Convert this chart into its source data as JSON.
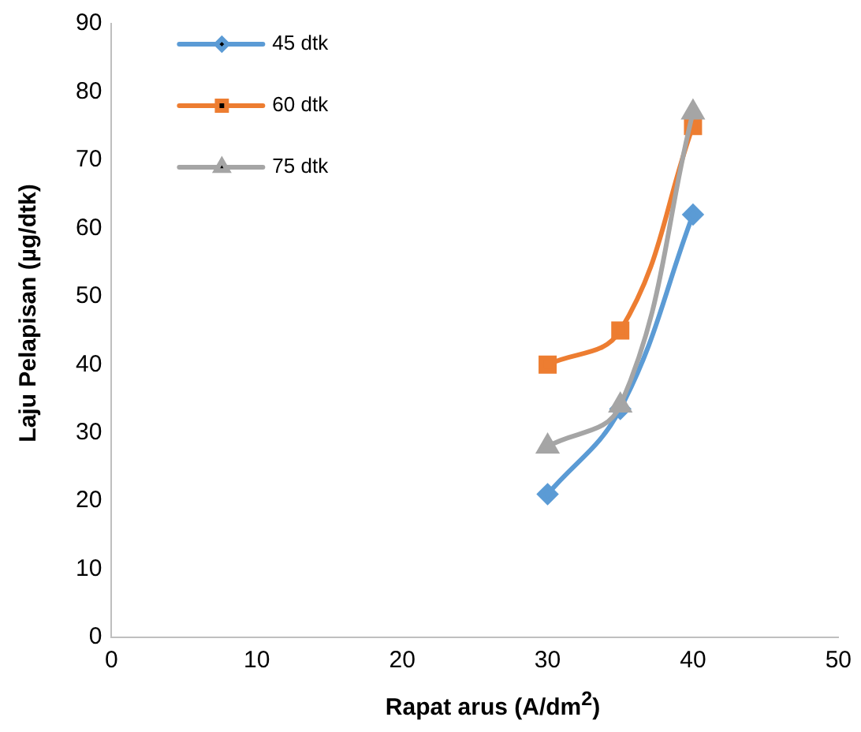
{
  "chart_data": {
    "type": "line",
    "xlabel": "Rapat arus (A/dm$^{2}$)",
    "ylabel": "Laju Pelapisan (µg/dtk)",
    "x": [
      30,
      35,
      40
    ],
    "series": [
      {
        "name": "45 dtk",
        "color": "#5b9bd5",
        "marker": "diamond",
        "values": [
          21,
          33.5,
          62
        ]
      },
      {
        "name": "60 dtk",
        "color": "#ed7d31",
        "marker": "square",
        "values": [
          40,
          45,
          75
        ]
      },
      {
        "name": "75 dtk",
        "color": "#a5a5a5",
        "marker": "triangle",
        "values": [
          28,
          34,
          77
        ]
      }
    ],
    "xlim": [
      0,
      50
    ],
    "xticks": [
      0,
      10,
      20,
      30,
      40,
      50
    ],
    "ylim": [
      0,
      90
    ],
    "yticks": [
      0,
      10,
      20,
      30,
      40,
      50,
      60,
      70,
      80,
      90
    ],
    "grid": false,
    "legend": "top left"
  }
}
